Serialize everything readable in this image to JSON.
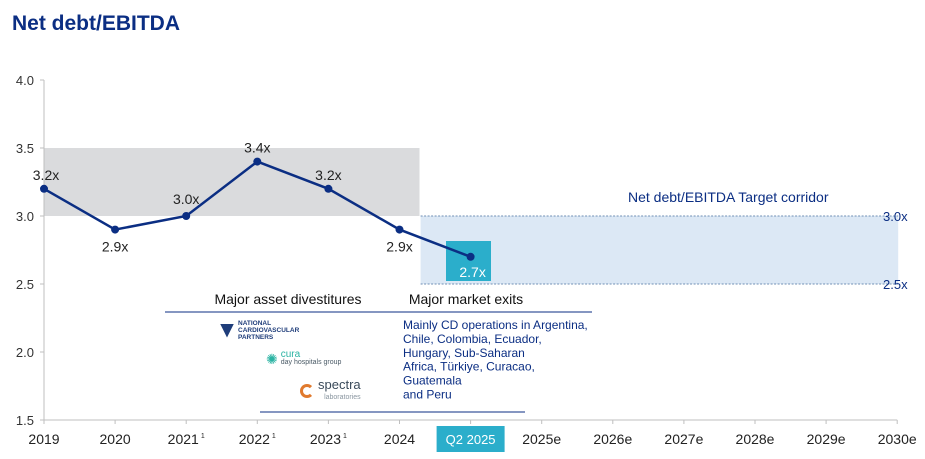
{
  "title": "Net debt/EBITDA",
  "chart_data": {
    "type": "line",
    "title": "Net debt/EBITDA",
    "x_labels": [
      "2019",
      "2020",
      "2021",
      "2022",
      "2023",
      "2024",
      "Q2 2025",
      "2025e",
      "2026e",
      "2027e",
      "2028e",
      "2029e",
      "2030e"
    ],
    "x_label_sups": [
      "",
      "",
      "1",
      "1",
      "1",
      "",
      "",
      "",
      "",
      "",
      "",
      "",
      ""
    ],
    "ylim": [
      1.5,
      4.0
    ],
    "yticks": [
      "1.5",
      "2.0",
      "2.5",
      "3.0",
      "3.5",
      "4.0"
    ],
    "series": [
      {
        "values": [
          3.2,
          2.9,
          3.0,
          3.4,
          3.2,
          2.9,
          2.7
        ],
        "labels": [
          "3.2x",
          "2.9x",
          "3.0x",
          "3.4x",
          "3.2x",
          "2.9x",
          "2.7x"
        ],
        "color": "#0b2e83"
      }
    ],
    "historical_band": {
      "from": "2019",
      "to": "2024",
      "ymin": 3.0,
      "ymax": 3.5,
      "color": "#dadbdd"
    },
    "target_corridor": {
      "label": "Net debt/EBITDA Target  corridor",
      "from": "Q2 2025",
      "to": "2030e",
      "ymin": 2.5,
      "ymax": 3.0,
      "upper_label": "3.0x",
      "lower_label": "2.5x",
      "color": "#dce8f5"
    },
    "highlight_color": "#2baecb",
    "grid": false
  },
  "annotations": {
    "divestitures_heading": "Major asset divestitures",
    "exits_heading": "Major market exits",
    "exits_text": [
      "Mainly CD operations  in Argentina,",
      "Chile,  Colombia,  Ecuador,",
      "Hungary,  Sub-Saharan",
      "Africa,  Türkiye,  Curacao,",
      "Guatemala",
      "and Peru"
    ]
  },
  "logos": {
    "ncp": "NATIONAL CARDIOVASCULAR PARTNERS",
    "cura_name": "cura",
    "cura_tagline": "day hospitals group",
    "spectra_name": "spectra",
    "spectra_tagline": "laboratories"
  }
}
